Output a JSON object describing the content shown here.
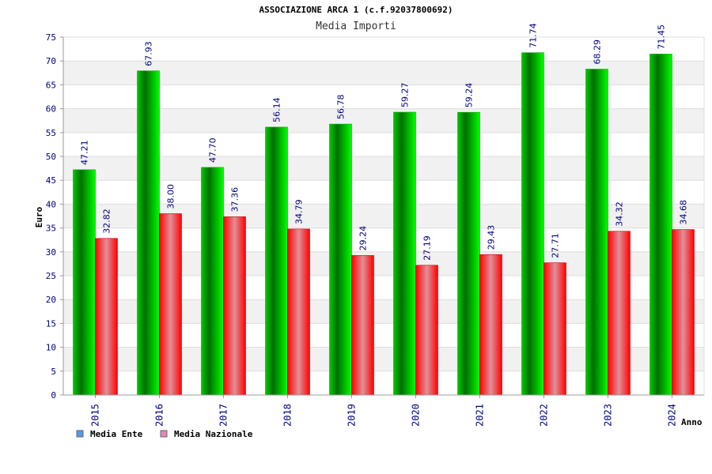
{
  "chart_data": {
    "type": "bar",
    "title": "ASSOCIAZIONE ARCA 1 (c.f.92037800692)",
    "subtitle": "Media Importi",
    "xlabel": "Anno",
    "ylabel": "Euro",
    "ylim": [
      0,
      75
    ],
    "ytick_step": 5,
    "grid": true,
    "legend_position": "bottom-left",
    "categories": [
      "2015",
      "2016",
      "2017",
      "2018",
      "2019",
      "2020",
      "2021",
      "2022",
      "2023",
      "2024"
    ],
    "series": [
      {
        "name": "Media Ente",
        "color": "#00cc00",
        "legend_color": "#5599ee",
        "values": [
          47.21,
          67.93,
          47.7,
          56.14,
          56.78,
          59.27,
          59.24,
          71.74,
          68.29,
          71.45
        ],
        "labels": [
          "47.21",
          "67.93",
          "47.70",
          "56.14",
          "56.78",
          "59.27",
          "59.24",
          "71.74",
          "68.29",
          "71.45"
        ]
      },
      {
        "name": "Media Nazionale",
        "color": "#ee1111",
        "legend_color": "#dd88bb",
        "values": [
          32.82,
          38.0,
          37.36,
          34.79,
          29.24,
          27.19,
          29.43,
          27.71,
          34.32,
          34.68
        ],
        "labels": [
          "32.82",
          "38.00",
          "37.36",
          "34.79",
          "29.24",
          "27.19",
          "29.43",
          "27.71",
          "34.32",
          "34.68"
        ]
      }
    ]
  }
}
